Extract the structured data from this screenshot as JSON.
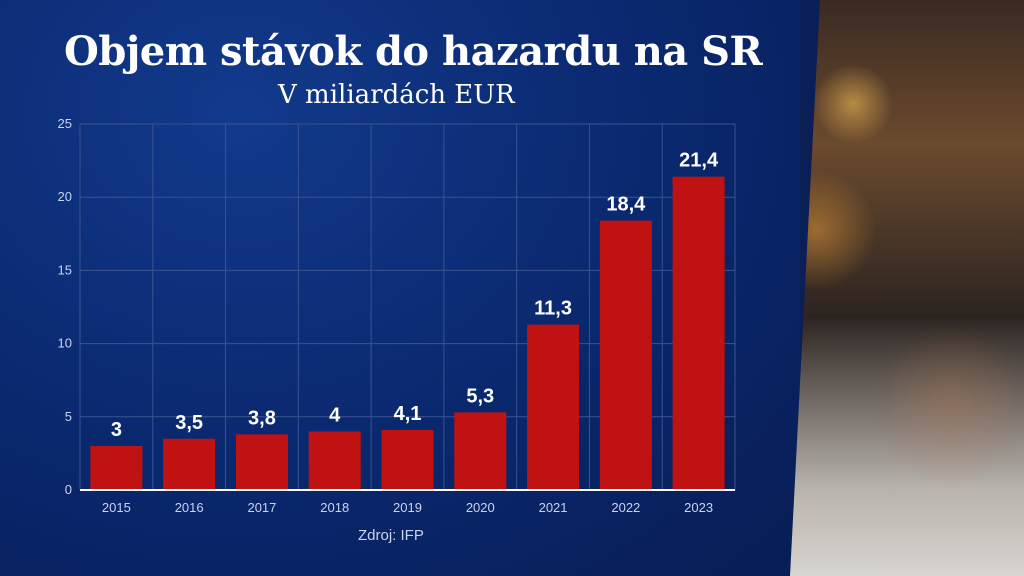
{
  "header": {
    "title": "Objem stávok do hazardu na SR",
    "subtitle": "V miliardách EUR"
  },
  "footer": {
    "source": "Zdroj: IFP"
  },
  "colors": {
    "bar": "#c01212",
    "background": "#0b2a72",
    "grid": "#3b5290",
    "text": "#ffffff"
  },
  "chart_data": {
    "type": "bar",
    "categories": [
      "2015",
      "2016",
      "2017",
      "2018",
      "2019",
      "2020",
      "2021",
      "2022",
      "2023"
    ],
    "values": [
      3,
      3.5,
      3.8,
      4,
      4.1,
      5.3,
      11.3,
      18.4,
      21.4
    ],
    "value_labels": [
      "3",
      "3,5",
      "3,8",
      "4",
      "4,1",
      "5,3",
      "11,3",
      "18,4",
      "21,4"
    ],
    "ylim": [
      0,
      25
    ],
    "yticks": [
      0,
      5,
      10,
      15,
      20,
      25
    ],
    "xlabel": "",
    "ylabel": "",
    "grid": true
  },
  "decor": {
    "photo": "lottery-balls-image"
  }
}
